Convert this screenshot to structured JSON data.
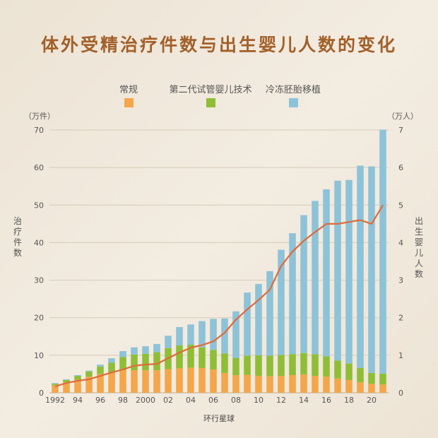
{
  "title": "体外受精治疗件数与出生婴儿人数的变化",
  "legend": [
    {
      "label": "常规",
      "color": "#f4a64a"
    },
    {
      "label": "第二代试管婴儿技术",
      "color": "#8fbe36"
    },
    {
      "label": "冷冻胚胎移植",
      "color": "#8dc3d9"
    }
  ],
  "units": {
    "left": "（万件）",
    "right": "（万人）"
  },
  "axis_titles": {
    "left": "治疗件数",
    "right": "出生婴儿人数"
  },
  "source": "环行星球",
  "line_color": "#e06a3a",
  "chart_data": {
    "type": "bar",
    "stacked": true,
    "categories": [
      "1992",
      "1993",
      "1994",
      "1995",
      "1996",
      "1997",
      "1998",
      "1999",
      "2000",
      "2001",
      "2002",
      "2003",
      "2004",
      "2005",
      "2006",
      "2007",
      "2008",
      "2009",
      "2010",
      "2011",
      "2012",
      "2013",
      "2014",
      "2015",
      "2016",
      "2017",
      "2018",
      "2019",
      "2020",
      "2021"
    ],
    "x_tick_labels": [
      "1992",
      "",
      "94",
      "",
      "96",
      "",
      "98",
      "",
      "2000",
      "",
      "02",
      "",
      "04",
      "",
      "06",
      "",
      "08",
      "",
      "10",
      "",
      "12",
      "",
      "14",
      "",
      "16",
      "",
      "18",
      "",
      "20",
      ""
    ],
    "series": [
      {
        "name": "常规",
        "axis": "left",
        "values": [
          2,
          2.8,
          3.5,
          4.3,
          5,
          5.4,
          6,
          6,
          6,
          6,
          6.3,
          6.5,
          6.7,
          6.6,
          6.2,
          5.3,
          4.7,
          4.8,
          4.5,
          4.4,
          4.5,
          4.7,
          4.9,
          4.5,
          4.3,
          3.8,
          3.4,
          2.8,
          2.4,
          2.2
        ]
      },
      {
        "name": "第二代试管婴儿技术",
        "axis": "left",
        "values": [
          0.4,
          0.6,
          1,
          1.4,
          2,
          2.6,
          3.5,
          4.2,
          4.4,
          4.8,
          5.6,
          6.1,
          6.1,
          5.5,
          5.2,
          5.2,
          4.6,
          5.1,
          5.5,
          5.5,
          5.6,
          5.6,
          5.7,
          5.8,
          5.4,
          4.8,
          4.4,
          3.8,
          2.9,
          2.9
        ]
      },
      {
        "name": "冷冻胚胎移植",
        "axis": "left",
        "values": [
          0.2,
          0.2,
          0.2,
          0.2,
          0.5,
          1.2,
          1.6,
          1.9,
          2,
          2.2,
          3.3,
          4.9,
          5.4,
          7,
          8.3,
          9.3,
          12.4,
          16.8,
          19,
          22.5,
          28,
          32.2,
          36.7,
          40.8,
          44.5,
          47.9,
          48.9,
          53.9,
          55,
          65
        ]
      },
      {
        "name": "出生婴儿人数",
        "type": "line",
        "axis": "right",
        "values": [
          0.17,
          0.26,
          0.32,
          0.36,
          0.45,
          0.54,
          0.62,
          0.72,
          0.75,
          0.77,
          0.92,
          1.07,
          1.2,
          1.27,
          1.37,
          1.6,
          1.95,
          2.22,
          2.47,
          2.75,
          3.38,
          3.76,
          4.05,
          4.28,
          4.5,
          4.5,
          4.55,
          4.6,
          4.5,
          5.0
        ]
      }
    ],
    "y_left": {
      "min": 0,
      "max": 70,
      "ticks": [
        0,
        10,
        20,
        30,
        40,
        50,
        60,
        70
      ]
    },
    "y_right": {
      "min": 0,
      "max": 7,
      "ticks": [
        0,
        1,
        2,
        3,
        4,
        5,
        6,
        7
      ]
    },
    "grid": true
  }
}
